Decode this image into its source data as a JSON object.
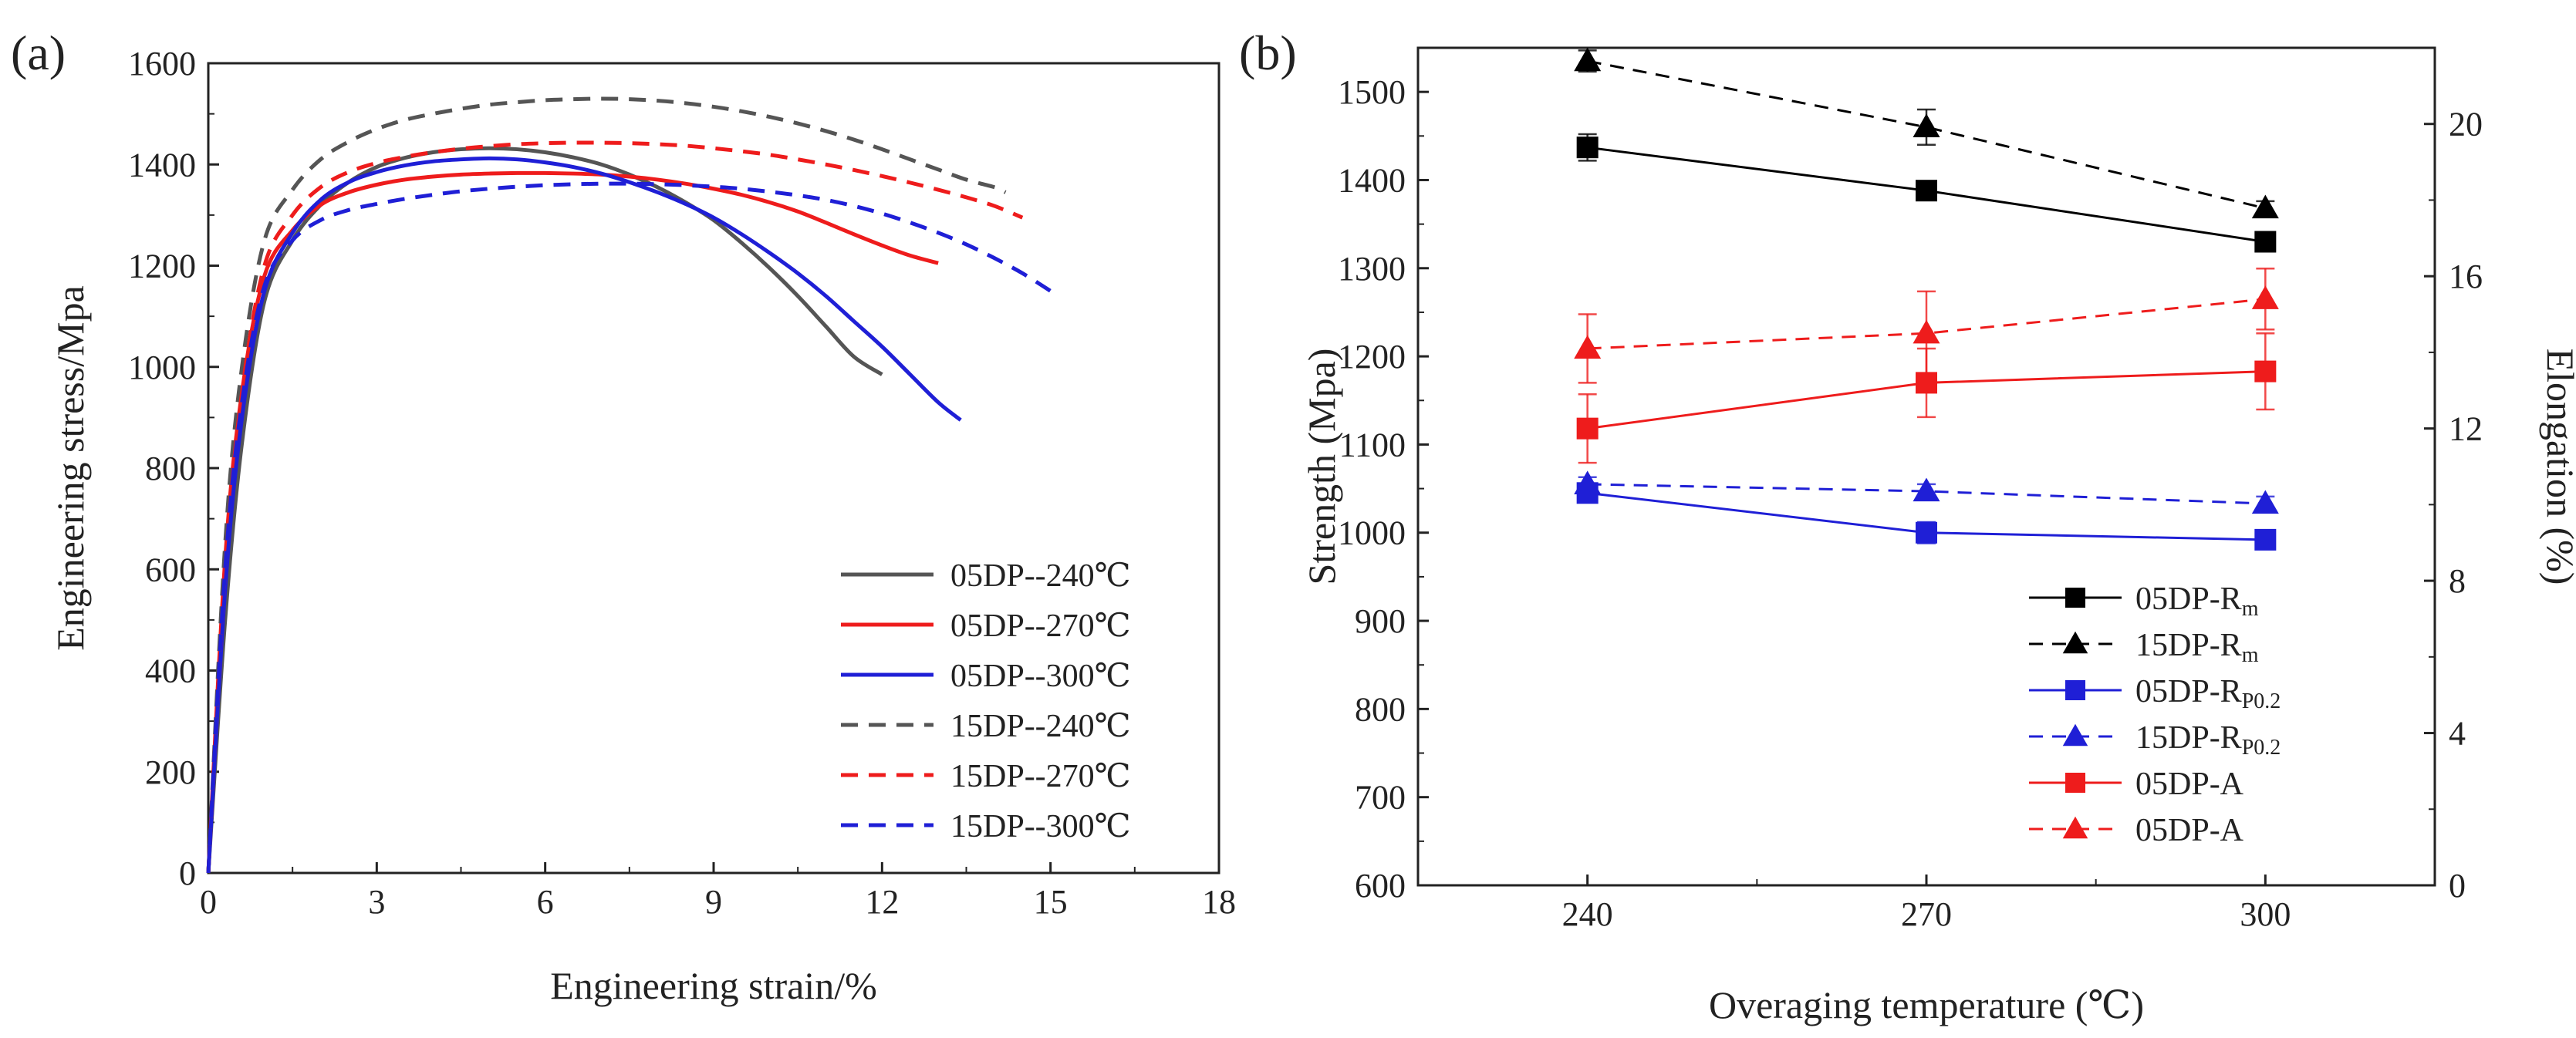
{
  "chart_data": [
    {
      "panel_label": "(a)",
      "type": "line",
      "xlabel": "Engineering strain/%",
      "ylabel": "Engineering stress/Mpa",
      "xlim": [
        0,
        18
      ],
      "ylim": [
        0,
        1600
      ],
      "xticks": [
        0,
        3,
        6,
        9,
        12,
        15,
        18
      ],
      "yticks": [
        0,
        200,
        400,
        600,
        800,
        1000,
        1200,
        1400,
        1600
      ],
      "legend_position": "bottom-right",
      "series": [
        {
          "name": "05DP--240℃",
          "color": "#555555",
          "dash": "solid",
          "x": [
            0,
            0.3,
            0.6,
            1.0,
            1.5,
            2.0,
            2.5,
            3.0,
            3.5,
            4.0,
            4.5,
            5.0,
            5.5,
            6.0,
            6.5,
            7.0,
            7.5,
            8.0,
            8.5,
            9.0,
            9.5,
            10.0,
            10.5,
            11.0,
            11.5,
            12.0
          ],
          "y": [
            0,
            500,
            850,
            1130,
            1250,
            1320,
            1365,
            1395,
            1413,
            1424,
            1430,
            1432,
            1430,
            1424,
            1414,
            1400,
            1380,
            1355,
            1325,
            1290,
            1245,
            1195,
            1140,
            1080,
            1020,
            985
          ]
        },
        {
          "name": "05DP--270℃",
          "color": "#ee1c1c",
          "dash": "solid",
          "x": [
            0,
            0.3,
            0.6,
            1.0,
            1.5,
            2.0,
            2.5,
            3.0,
            3.5,
            4.0,
            4.5,
            5.0,
            5.5,
            6.0,
            6.5,
            7.0,
            7.5,
            8.0,
            8.5,
            9.0,
            9.5,
            10.0,
            10.5,
            11.0,
            11.5,
            12.0,
            12.5,
            13.0
          ],
          "y": [
            0,
            620,
            950,
            1180,
            1270,
            1320,
            1345,
            1360,
            1370,
            1376,
            1380,
            1382,
            1383,
            1383,
            1382,
            1380,
            1376,
            1370,
            1362,
            1352,
            1340,
            1325,
            1307,
            1285,
            1262,
            1240,
            1220,
            1205
          ]
        },
        {
          "name": "05DP--300℃",
          "color": "#1f1fd6",
          "dash": "solid",
          "x": [
            0,
            0.3,
            0.6,
            1.0,
            1.5,
            2.0,
            2.5,
            3.0,
            3.5,
            4.0,
            4.5,
            5.0,
            5.5,
            6.0,
            6.5,
            7.0,
            7.5,
            8.0,
            8.5,
            9.0,
            9.5,
            10.0,
            10.5,
            11.0,
            11.5,
            12.0,
            12.5,
            13.0,
            13.4
          ],
          "y": [
            0,
            560,
            900,
            1150,
            1265,
            1330,
            1365,
            1385,
            1398,
            1406,
            1410,
            1412,
            1410,
            1404,
            1395,
            1382,
            1365,
            1345,
            1322,
            1295,
            1262,
            1225,
            1185,
            1140,
            1090,
            1040,
            985,
            930,
            895
          ]
        },
        {
          "name": "15DP--240℃",
          "color": "#555555",
          "dash": "dashed",
          "x": [
            0,
            0.3,
            0.6,
            1.0,
            1.5,
            2.0,
            2.5,
            3.0,
            3.5,
            4.0,
            4.5,
            5.0,
            5.5,
            6.0,
            6.5,
            7.0,
            7.5,
            8.0,
            8.5,
            9.0,
            9.5,
            10.0,
            10.5,
            11.0,
            11.5,
            12.0,
            12.5,
            13.0,
            13.5,
            14.0,
            14.2
          ],
          "y": [
            0,
            650,
            1000,
            1250,
            1350,
            1410,
            1445,
            1470,
            1488,
            1500,
            1510,
            1518,
            1523,
            1527,
            1529,
            1530,
            1529,
            1526,
            1521,
            1514,
            1505,
            1494,
            1481,
            1466,
            1449,
            1430,
            1410,
            1390,
            1370,
            1355,
            1345
          ]
        },
        {
          "name": "15DP--270℃",
          "color": "#ee1c1c",
          "dash": "dashed",
          "x": [
            0,
            0.3,
            0.6,
            1.0,
            1.5,
            2.0,
            2.5,
            3.0,
            3.5,
            4.0,
            4.5,
            5.0,
            5.5,
            6.0,
            6.5,
            7.0,
            7.5,
            8.0,
            8.5,
            9.0,
            9.5,
            10.0,
            10.5,
            11.0,
            11.5,
            12.0,
            12.5,
            13.0,
            13.5,
            14.0,
            14.5
          ],
          "y": [
            0,
            600,
            950,
            1200,
            1300,
            1355,
            1385,
            1403,
            1415,
            1424,
            1431,
            1436,
            1440,
            1442,
            1443,
            1443,
            1442,
            1440,
            1437,
            1432,
            1426,
            1419,
            1410,
            1400,
            1389,
            1377,
            1364,
            1350,
            1335,
            1318,
            1295
          ]
        },
        {
          "name": "15DP--300℃",
          "color": "#1f1fd6",
          "dash": "dashed",
          "x": [
            0,
            0.3,
            0.6,
            1.0,
            1.5,
            2.0,
            2.5,
            3.0,
            3.5,
            4.0,
            4.5,
            5.0,
            5.5,
            6.0,
            6.5,
            7.0,
            7.5,
            8.0,
            8.5,
            9.0,
            9.5,
            10.0,
            10.5,
            11.0,
            11.5,
            12.0,
            12.5,
            13.0,
            13.5,
            14.0,
            14.5,
            15.0
          ],
          "y": [
            0,
            600,
            930,
            1160,
            1250,
            1290,
            1310,
            1322,
            1332,
            1340,
            1347,
            1352,
            1356,
            1359,
            1361,
            1362,
            1362,
            1361,
            1359,
            1356,
            1352,
            1346,
            1339,
            1330,
            1318,
            1303,
            1285,
            1265,
            1242,
            1215,
            1185,
            1150
          ]
        }
      ],
      "legend": [
        "05DP--240℃",
        "05DP--270℃",
        "05DP--300℃",
        "15DP--240℃",
        "15DP--270℃",
        "15DP--300℃"
      ]
    },
    {
      "panel_label": "(b)",
      "type": "line",
      "xlabel": "Overaging temperature (℃)",
      "ylabel": "Strength (Mpa)",
      "y2label": "Elongation (%)",
      "categories": [
        240,
        270,
        300
      ],
      "xlim": [
        225,
        315
      ],
      "ylim": [
        600,
        1550
      ],
      "y2lim": [
        0,
        22
      ],
      "yticks": [
        600,
        700,
        800,
        900,
        1000,
        1100,
        1200,
        1300,
        1400,
        1500
      ],
      "y2ticks": [
        0,
        4,
        8,
        12,
        16,
        20
      ],
      "legend_position": "bottom-right",
      "series": [
        {
          "name": "05DP-R",
          "sub": "m",
          "axis": "left",
          "color": "#000000",
          "dash": "solid",
          "marker": "square",
          "values": [
            1437,
            1388,
            1330
          ],
          "err": [
            15,
            8,
            10
          ]
        },
        {
          "name": "15DP-R",
          "sub": "m",
          "axis": "left",
          "color": "#000000",
          "dash": "dashed",
          "marker": "triangle",
          "values": [
            1535,
            1460,
            1368
          ],
          "err": [
            12,
            20,
            8
          ]
        },
        {
          "name": "05DP-R",
          "sub": "P0.2",
          "axis": "left",
          "color": "#1f1fd6",
          "dash": "solid",
          "marker": "square",
          "values": [
            1045,
            1000,
            992
          ],
          "err": [
            10,
            12,
            10
          ]
        },
        {
          "name": "15DP-R",
          "sub": "P0.2",
          "axis": "left",
          "color": "#1f1fd6",
          "dash": "dashed",
          "marker": "triangle",
          "values": [
            1055,
            1047,
            1033
          ],
          "err": [
            8,
            8,
            8
          ]
        },
        {
          "name": "05DP-A",
          "sub": "",
          "axis": "right",
          "color": "#ee1c1c",
          "dash": "solid",
          "marker": "square",
          "values": [
            12.0,
            13.2,
            13.5
          ],
          "err": [
            0.9,
            0.9,
            1.0
          ]
        },
        {
          "name": "05DP-A",
          "sub": "",
          "axis": "right",
          "color": "#ee1c1c",
          "dash": "dashed",
          "marker": "triangle",
          "values": [
            14.1,
            14.5,
            15.4
          ],
          "err": [
            0.9,
            1.1,
            0.8
          ]
        }
      ]
    }
  ]
}
